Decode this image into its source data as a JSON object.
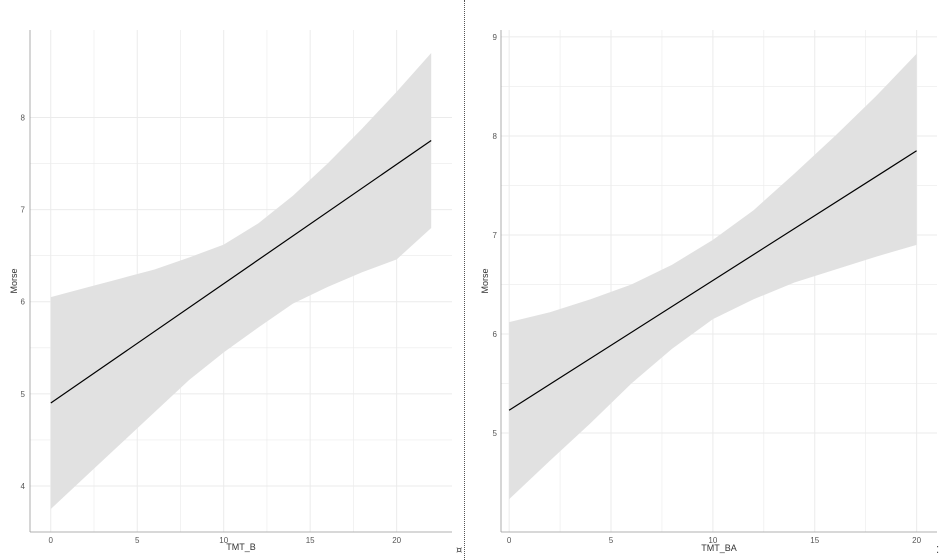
{
  "chart_data": [
    {
      "type": "line",
      "xlabel": "TMT_B",
      "ylabel": "Morse",
      "xlim": [
        -1.2,
        23.2
      ],
      "ylim": [
        3.5,
        8.95
      ],
      "xticks": [
        0,
        5,
        10,
        15,
        20
      ],
      "yticks": [
        4,
        5,
        6,
        7,
        8
      ],
      "grid": true,
      "series": [
        {
          "role": "fit",
          "x": [
            0,
            22
          ],
          "y": [
            4.9,
            7.75
          ]
        }
      ],
      "band": {
        "x": [
          0,
          2,
          4,
          6,
          8,
          10,
          12,
          14,
          16,
          18,
          20,
          22
        ],
        "lower": [
          3.75,
          4.1,
          4.45,
          4.8,
          5.15,
          5.45,
          5.72,
          5.98,
          6.16,
          6.32,
          6.46,
          6.8
        ],
        "upper": [
          6.05,
          6.15,
          6.25,
          6.35,
          6.48,
          6.62,
          6.85,
          7.15,
          7.5,
          7.88,
          8.28,
          8.7
        ]
      }
    },
    {
      "type": "line",
      "xlabel": "TMT_BA",
      "ylabel": "Morse",
      "xlim": [
        -0.4,
        21.0
      ],
      "ylim": [
        4.0,
        9.07
      ],
      "xticks": [
        0,
        5,
        10,
        15,
        20
      ],
      "yticks": [
        5,
        6,
        7,
        8,
        9
      ],
      "grid": true,
      "series": [
        {
          "role": "fit",
          "x": [
            0,
            20
          ],
          "y": [
            5.23,
            7.85
          ]
        }
      ],
      "band": {
        "x": [
          0,
          2,
          4,
          6,
          8,
          10,
          12,
          14,
          16,
          18,
          20
        ],
        "lower": [
          4.33,
          4.72,
          5.1,
          5.5,
          5.85,
          6.15,
          6.35,
          6.52,
          6.65,
          6.78,
          6.9
        ],
        "upper": [
          6.12,
          6.22,
          6.35,
          6.5,
          6.7,
          6.95,
          7.25,
          7.62,
          8.0,
          8.4,
          8.83
        ]
      }
    }
  ],
  "colors": {
    "band": "#e1e1e1",
    "line": "#000000",
    "grid": "#ebebeb",
    "axis": "#999999"
  },
  "markers": {
    "left_bottom": "¤",
    "right_bottom": "⁚"
  }
}
